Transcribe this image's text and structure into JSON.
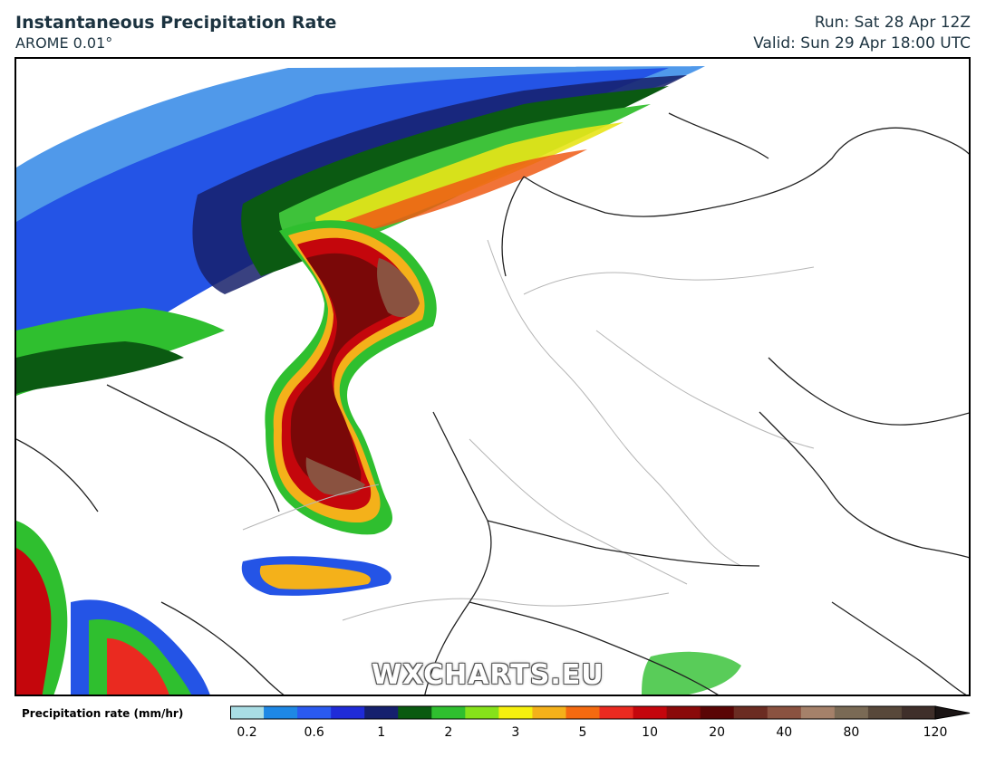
{
  "header": {
    "title": "Instantaneous Precipitation Rate",
    "model": "AROME 0.01°",
    "run": "Run: Sat 28 Apr 12Z",
    "valid": "Valid: Sun 29 Apr 18:00 UTC"
  },
  "watermark": "WXCHARTS.EU",
  "legend": {
    "label": "Precipitation rate (mm/hr)",
    "colors": [
      "#a9dde4",
      "#1e88e5",
      "#2a5af0",
      "#1f2bd8",
      "#15206e",
      "#0a5a10",
      "#2fbf2f",
      "#86e21a",
      "#f5f00e",
      "#f4b11a",
      "#f46a10",
      "#ea2a20",
      "#c4060c",
      "#8a0a0a",
      "#5a0505",
      "#6b2c22",
      "#8a5240",
      "#a5816a",
      "#7a6a55",
      "#58483a",
      "#3f2f2a"
    ],
    "ticks": [
      {
        "label": "0.2",
        "index": 1
      },
      {
        "label": "0.6",
        "index": 3
      },
      {
        "label": "1",
        "index": 5
      },
      {
        "label": "2",
        "index": 7
      },
      {
        "label": "3",
        "index": 9
      },
      {
        "label": "5",
        "index": 11
      },
      {
        "label": "10",
        "index": 13
      },
      {
        "label": "20",
        "index": 15
      },
      {
        "label": "40",
        "index": 17
      },
      {
        "label": "80",
        "index": 19
      },
      {
        "label": "120",
        "index": 21
      }
    ]
  }
}
